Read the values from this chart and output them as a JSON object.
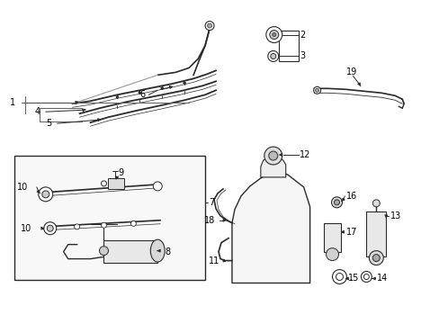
{
  "bg_color": "#ffffff",
  "line_color": "#2a2a2a",
  "label_color": "#000000",
  "fig_width": 4.89,
  "fig_height": 3.6,
  "dpi": 100,
  "label_fs": 7.0
}
